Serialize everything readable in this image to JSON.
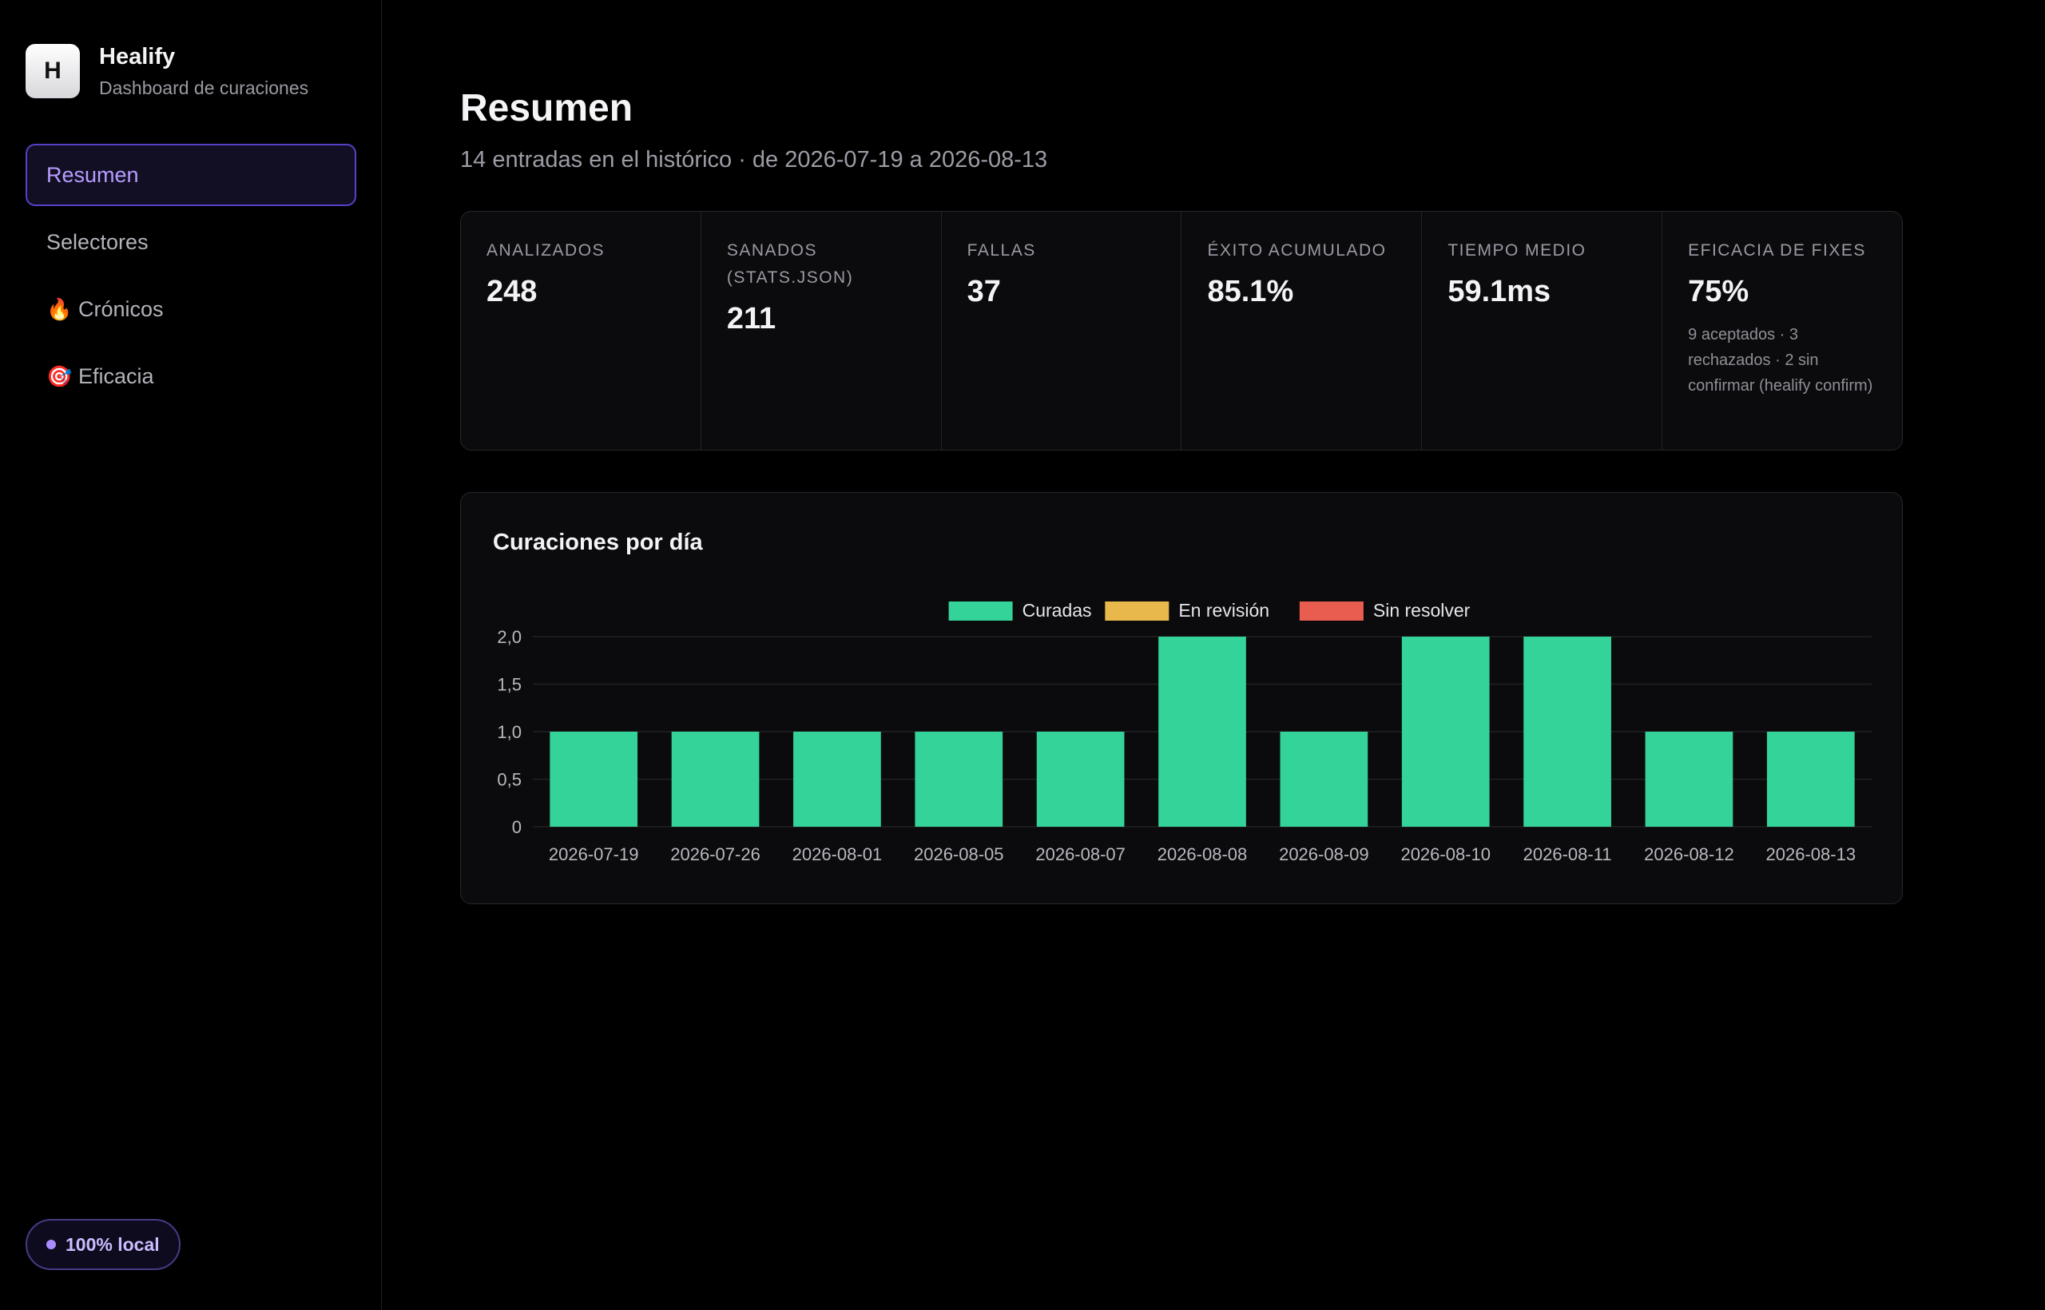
{
  "brand": {
    "logo_letter": "H",
    "name": "Healify",
    "subtitle": "Dashboard de curaciones"
  },
  "sidebar": {
    "items": [
      {
        "label": "Resumen",
        "icon": "",
        "active": true
      },
      {
        "label": "Selectores",
        "icon": ""
      },
      {
        "label": "Crónicos",
        "icon": "🔥"
      },
      {
        "label": "Eficacia",
        "icon": "🎯"
      }
    ],
    "badge": "100% local"
  },
  "header": {
    "title": "Resumen",
    "subtitle": "14 entradas en el histórico · de 2026-07-19 a 2026-08-13"
  },
  "stats": [
    {
      "label": "ANALIZADOS",
      "value": "248",
      "note": ""
    },
    {
      "label": "SANADOS (STATS.JSON)",
      "value": "211",
      "note": ""
    },
    {
      "label": "FALLAS",
      "value": "37",
      "note": ""
    },
    {
      "label": "ÉXITO ACUMULADO",
      "value": "85.1%",
      "note": ""
    },
    {
      "label": "TIEMPO MEDIO",
      "value": "59.1ms",
      "note": ""
    },
    {
      "label": "EFICACIA DE FIXES",
      "value": "75%",
      "note": "9 aceptados · 3 rechazados · 2 sin confirmar (healify confirm)"
    }
  ],
  "colors": {
    "accent": "#b79dff",
    "curadas": "#34d399",
    "en_revision": "#e8b84c",
    "sin_resolver": "#e85d50"
  },
  "chart_data": {
    "type": "bar",
    "title": "Curaciones por día",
    "categories": [
      "2026-07-19",
      "2026-07-26",
      "2026-08-01",
      "2026-08-05",
      "2026-08-07",
      "2026-08-08",
      "2026-08-09",
      "2026-08-10",
      "2026-08-11",
      "2026-08-12",
      "2026-08-13"
    ],
    "series": [
      {
        "name": "Curadas",
        "color": "#34d399",
        "values": [
          1,
          1,
          1,
          1,
          1,
          2,
          1,
          2,
          2,
          1,
          1
        ]
      },
      {
        "name": "En revisión",
        "color": "#e8b84c",
        "values": [
          0,
          0,
          0,
          0,
          0,
          0,
          0,
          0,
          0,
          0,
          0
        ]
      },
      {
        "name": "Sin resolver",
        "color": "#e85d50",
        "values": [
          0,
          0,
          0,
          0,
          0,
          0,
          0,
          0,
          0,
          0,
          0
        ]
      }
    ],
    "stacked": true,
    "ylim": [
      0,
      2
    ],
    "yticks": [
      "0",
      "0,5",
      "1,0",
      "1,5",
      "2,0"
    ],
    "ytick_values": [
      0,
      0.5,
      1,
      1.5,
      2
    ],
    "legend": "top-center",
    "grid": true
  }
}
